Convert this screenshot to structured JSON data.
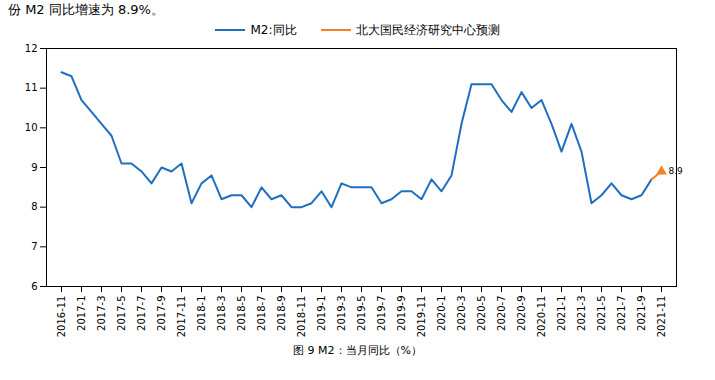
{
  "chart_data": {
    "type": "line",
    "title": "图 9 M2：当月同比（%）",
    "subtitle": "份 M2 同比增速为 8.9%。",
    "categories": [
      "2016-11",
      null,
      "2017-1",
      null,
      "2017-3",
      null,
      "2017-5",
      null,
      "2017-7",
      null,
      "2017-9",
      null,
      "2017-11",
      null,
      "2018-1",
      null,
      "2018-3",
      null,
      "2018-5",
      null,
      "2018-7",
      null,
      "2018-9",
      null,
      "2018-11",
      null,
      "2019-1",
      null,
      "2019-3",
      null,
      "2019-5",
      null,
      "2019-7",
      null,
      "2019-9",
      null,
      "2019-11",
      null,
      "2020-1",
      null,
      "2020-3",
      null,
      "2020-5",
      null,
      "2020-7",
      null,
      "2020-9",
      null,
      "2020-11",
      null,
      "2021-1",
      null,
      "2021-3",
      null,
      "2021-5",
      null,
      "2021-7",
      null,
      "2021-9",
      null,
      "2021-11"
    ],
    "series": [
      {
        "name": "M2:同比",
        "color": "#1f6fc0",
        "line_style": "solid",
        "values": [
          11.4,
          11.3,
          10.7,
          10.4,
          10.1,
          9.8,
          9.1,
          9.1,
          8.9,
          8.6,
          9.0,
          8.9,
          9.1,
          8.1,
          8.6,
          8.8,
          8.2,
          8.3,
          8.3,
          8.0,
          8.5,
          8.2,
          8.3,
          8.0,
          8.0,
          8.1,
          8.4,
          8.0,
          8.6,
          8.5,
          8.5,
          8.5,
          8.1,
          8.2,
          8.4,
          8.4,
          8.2,
          8.7,
          8.4,
          8.8,
          10.1,
          11.1,
          11.1,
          11.1,
          10.7,
          10.4,
          10.9,
          10.5,
          10.7,
          10.1,
          9.4,
          10.1,
          9.4,
          8.1,
          8.3,
          8.6,
          8.3,
          8.2,
          8.3,
          8.7,
          null
        ]
      },
      {
        "name": "北大国民经济研究中心预测",
        "color": "#f58220",
        "line_style": "solid",
        "marker": "triangle",
        "data_labels": true,
        "values": [
          null,
          null,
          null,
          null,
          null,
          null,
          null,
          null,
          null,
          null,
          null,
          null,
          null,
          null,
          null,
          null,
          null,
          null,
          null,
          null,
          null,
          null,
          null,
          null,
          null,
          null,
          null,
          null,
          null,
          null,
          null,
          null,
          null,
          null,
          null,
          null,
          null,
          null,
          null,
          null,
          null,
          null,
          null,
          null,
          null,
          null,
          null,
          null,
          null,
          null,
          null,
          null,
          null,
          null,
          null,
          null,
          null,
          null,
          null,
          8.7,
          8.9
        ],
        "value_labels": [
          null,
          null,
          null,
          null,
          null,
          null,
          null,
          null,
          null,
          null,
          null,
          null,
          null,
          null,
          null,
          null,
          null,
          null,
          null,
          null,
          null,
          null,
          null,
          null,
          null,
          null,
          null,
          null,
          null,
          null,
          null,
          null,
          null,
          null,
          null,
          null,
          null,
          null,
          null,
          null,
          null,
          null,
          null,
          null,
          null,
          null,
          null,
          null,
          null,
          null,
          null,
          null,
          null,
          null,
          null,
          null,
          null,
          null,
          null,
          null,
          "8.9"
        ]
      }
    ],
    "ylim": [
      6,
      12
    ],
    "yticks": [
      6,
      7,
      8,
      9,
      10,
      11,
      12
    ],
    "grid": false,
    "legend": "top"
  }
}
